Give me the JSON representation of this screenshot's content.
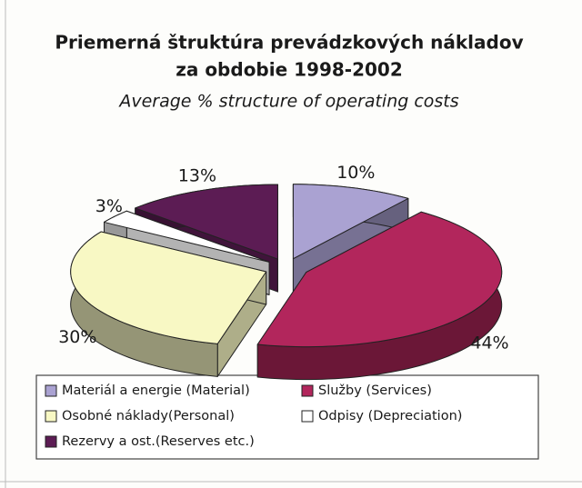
{
  "chart_data": {
    "type": "pie3d",
    "title": [
      "Priemerná štruktúra prevádzkových nákladov",
      "za obdobie 1998-2002"
    ],
    "subtitle": "Average % structure of operating costs",
    "categories": [
      "Materiál a energie (Material)",
      "Služby (Services)",
      "Osobné náklady(Personal)",
      "Odpisy (Depreciation)",
      "Rezervy a ost.(Reserves etc.)"
    ],
    "values": [
      10,
      44,
      30,
      3,
      13
    ],
    "value_labels": [
      "10%",
      "44%",
      "30%",
      "3%",
      "13%"
    ],
    "colors": [
      "#aaa2d2",
      "#b2265c",
      "#f8f8c4",
      "#ffffff",
      "#5c1c54"
    ]
  }
}
